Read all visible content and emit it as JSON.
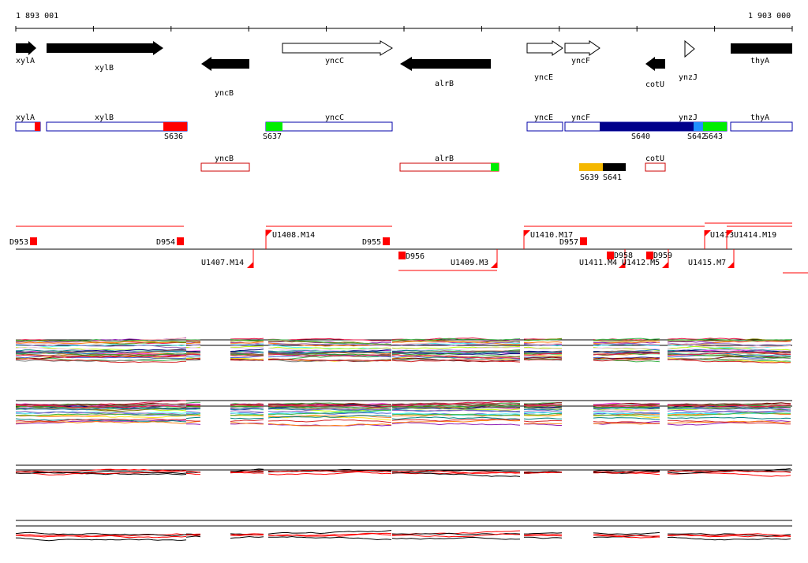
{
  "axis": {
    "start_label": "1 893 001",
    "end_label": "1 903 000"
  },
  "genes": [
    {
      "name": "xylA",
      "strand": "+",
      "style": "filled"
    },
    {
      "name": "xylB",
      "strand": "+",
      "style": "filled"
    },
    {
      "name": "yncB",
      "strand": "-",
      "style": "filled"
    },
    {
      "name": "yncC",
      "strand": "+",
      "style": "open"
    },
    {
      "name": "alrB",
      "strand": "-",
      "style": "filled"
    },
    {
      "name": "yncE",
      "strand": "+",
      "style": "open"
    },
    {
      "name": "yncF",
      "strand": "+",
      "style": "open"
    },
    {
      "name": "cotU",
      "strand": "-",
      "style": "filled"
    },
    {
      "name": "ynzJ",
      "strand": "+",
      "style": "open"
    },
    {
      "name": "thyA",
      "strand": "+",
      "style": "filled"
    }
  ],
  "feature_boxes": [
    {
      "label": "xylA",
      "color": "#0000aa"
    },
    {
      "label": "xylB",
      "color": "#0000aa"
    },
    {
      "label": "yncC",
      "color": "#0000aa"
    },
    {
      "label": "yncE",
      "color": "#0000aa"
    },
    {
      "label": "yncF",
      "color": "#0000aa"
    },
    {
      "label": "ynzJ",
      "color": "#0000aa"
    },
    {
      "label": "thyA",
      "color": "#0000aa"
    },
    {
      "label": "yncB",
      "color": "#cc0000"
    },
    {
      "label": "alrB",
      "color": "#cc0000"
    },
    {
      "label": "cotU",
      "color": "#cc0000"
    }
  ],
  "segments": [
    "S636",
    "S637",
    "S639",
    "S640",
    "S641",
    "S642",
    "S643"
  ],
  "segment_colors": {
    "S636": "#ff0000",
    "S637": "#00ee00",
    "S639": "#f5b800",
    "S640": "#00008b",
    "S641": "#000000",
    "S642": "#1e90ff",
    "S643": "#00ee00"
  },
  "transcripts_upper": [
    "U1408.M14",
    "U1410.M17",
    "U1413",
    "U1414.M19"
  ],
  "transcripts_lower": [
    "U1407.M14",
    "U1409.M3",
    "U1411.M4",
    "U1412.M5",
    "U1415.M7"
  ],
  "downshifts": [
    "D953",
    "D954",
    "D955",
    "D956",
    "D957",
    "D958",
    "D959"
  ],
  "colors": {
    "strong": "#000000",
    "marker": "#ff0000",
    "blue_box": "#0000aa",
    "red_box": "#cc0000"
  }
}
